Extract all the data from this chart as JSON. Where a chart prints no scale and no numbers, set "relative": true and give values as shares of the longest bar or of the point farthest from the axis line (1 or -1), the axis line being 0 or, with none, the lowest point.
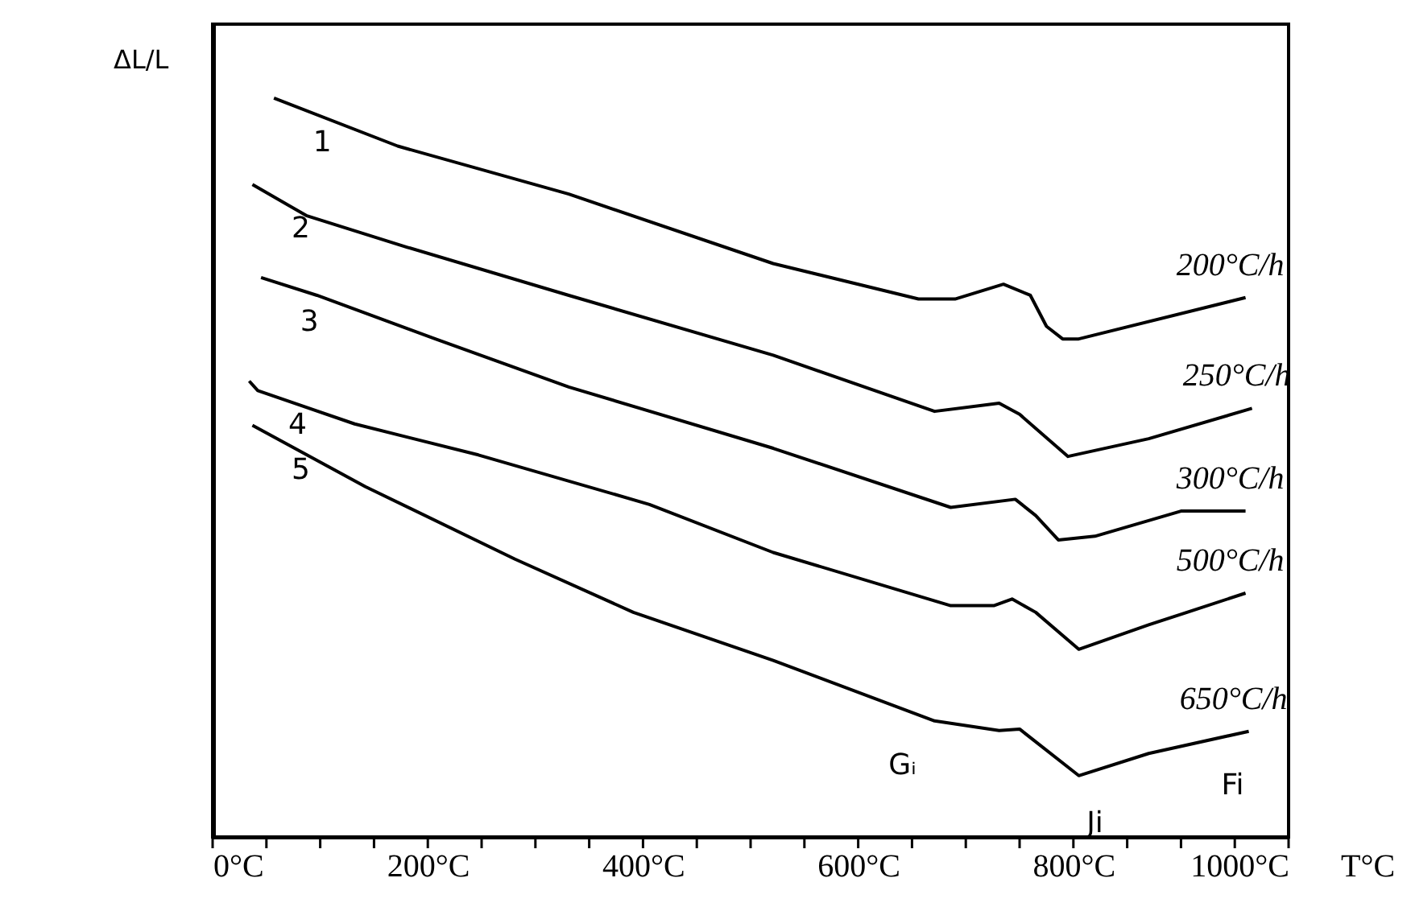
{
  "chart_data": {
    "type": "line",
    "relative": true,
    "ylabel": "ΔL/L",
    "xlabel": "T°C",
    "xlim": [
      0,
      1000
    ],
    "xticks": [
      {
        "value": 0,
        "label": "0°C"
      },
      {
        "value": 50,
        "label": null
      },
      {
        "value": 100,
        "label": null
      },
      {
        "value": 150,
        "label": null
      },
      {
        "value": 200,
        "label": "200°C"
      },
      {
        "value": 250,
        "label": null
      },
      {
        "value": 300,
        "label": null
      },
      {
        "value": 350,
        "label": null
      },
      {
        "value": 400,
        "label": "400°C"
      },
      {
        "value": 450,
        "label": null
      },
      {
        "value": 500,
        "label": null
      },
      {
        "value": 550,
        "label": null
      },
      {
        "value": 600,
        "label": "600°C"
      },
      {
        "value": 650,
        "label": null
      },
      {
        "value": 700,
        "label": null
      },
      {
        "value": 750,
        "label": null
      },
      {
        "value": 800,
        "label": "800°C"
      },
      {
        "value": 850,
        "label": null
      },
      {
        "value": 900,
        "label": null
      },
      {
        "value": 950,
        "label": null
      },
      {
        "value": 1000,
        "label": "1000°C"
      }
    ],
    "grid": false,
    "marker": "none",
    "line_style": "solid",
    "series": [
      {
        "name": "200°C/h",
        "color": "#000000",
        "x": [
          57,
          172,
          331,
          521,
          656,
          690,
          735,
          760,
          775,
          790,
          805,
          960
        ],
        "values": [
          1.0,
          0.935,
          0.87,
          0.776,
          0.728,
          0.728,
          0.748,
          0.733,
          0.691,
          0.674,
          0.674,
          0.73
        ]
      },
      {
        "name": "250°C/h",
        "color": "#000000",
        "x": [
          37,
          87,
          181,
          331,
          521,
          671,
          731,
          750,
          795,
          870,
          966
        ],
        "values": [
          0.883,
          0.841,
          0.798,
          0.733,
          0.652,
          0.576,
          0.587,
          0.572,
          0.515,
          0.539,
          0.58
        ]
      },
      {
        "name": "300°C/h",
        "color": "#000000",
        "x": [
          45,
          97,
          207,
          331,
          521,
          686,
          746,
          765,
          786,
          820,
          900,
          960
        ],
        "values": [
          0.757,
          0.733,
          0.674,
          0.609,
          0.526,
          0.446,
          0.457,
          0.435,
          0.402,
          0.407,
          0.441,
          0.441
        ]
      },
      {
        "name": "500°C/h",
        "color": "#000000",
        "x": [
          34,
          42,
          132,
          247,
          406,
          521,
          686,
          726,
          743,
          765,
          805,
          870,
          960
        ],
        "values": [
          0.617,
          0.604,
          0.559,
          0.517,
          0.45,
          0.385,
          0.313,
          0.313,
          0.322,
          0.304,
          0.254,
          0.287,
          0.33
        ]
      },
      {
        "name": "650°C/h",
        "color": "#000000",
        "x": [
          37,
          142,
          281,
          391,
          521,
          671,
          731,
          750,
          805,
          870,
          963
        ],
        "values": [
          0.557,
          0.474,
          0.376,
          0.304,
          0.239,
          0.157,
          0.144,
          0.146,
          0.083,
          0.113,
          0.143
        ]
      }
    ],
    "annotations": [
      "1",
      "2",
      "3",
      "4",
      "5",
      "Gᵢ",
      "Ji",
      "Fi"
    ]
  }
}
